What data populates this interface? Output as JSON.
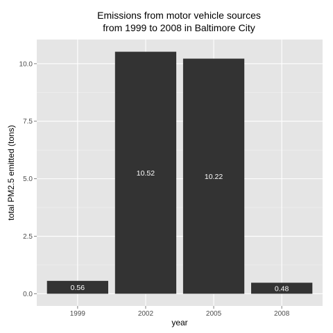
{
  "chart_data": {
    "type": "bar",
    "title_line1": "Emissions from motor vehicle sources",
    "title_line2": "from 1999 to 2008 in Baltimore City",
    "xlabel": "year",
    "ylabel": "total PM2.5 emitted (tons)",
    "categories": [
      "1999",
      "2002",
      "2005",
      "2008"
    ],
    "values": [
      0.56,
      10.52,
      10.22,
      0.48
    ],
    "value_labels": [
      "0.56",
      "10.52",
      "10.22",
      "0.48"
    ],
    "y_ticks": [
      0,
      2.5,
      5,
      7.5,
      10
    ],
    "y_tick_labels": [
      "0.0",
      "2.5",
      "5.0",
      "7.5",
      "10.0"
    ],
    "ylim": [
      -0.53,
      11.05
    ],
    "grid": true,
    "legend": "none",
    "colors": {
      "panel": "#e5e5e5",
      "grid_major": "#ffffff",
      "grid_minor": "#f2f2f2",
      "bar": "#333333",
      "tick_mark": "#7f7f7f"
    }
  }
}
